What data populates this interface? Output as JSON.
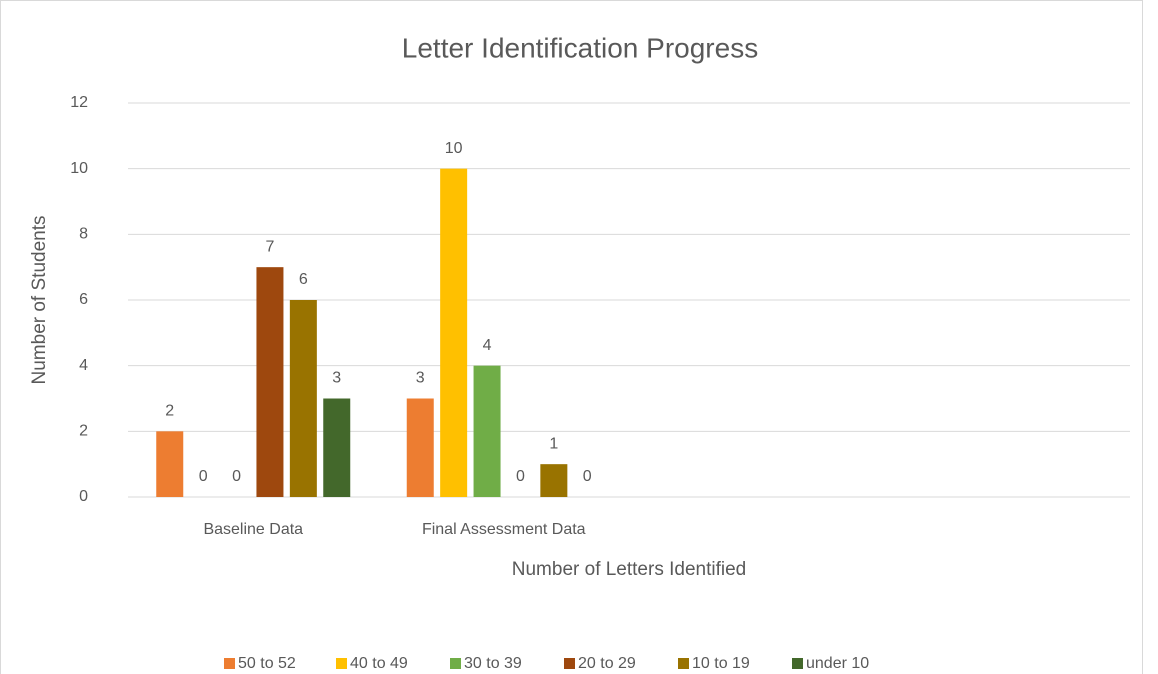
{
  "chart_data": {
    "type": "bar",
    "title": "Letter Identification Progress",
    "x_label": "Number of Letters Identified",
    "y_label": "Number of Students",
    "categories": [
      "Baseline Data",
      "Final Assessment Data",
      null,
      null
    ],
    "series": [
      {
        "name": "50 to 52",
        "color": "#ed7d31",
        "values": [
          2,
          3,
          null,
          null
        ]
      },
      {
        "name": "40 to 49",
        "color": "#ffc000",
        "values": [
          0,
          10,
          null,
          null
        ]
      },
      {
        "name": "30 to 39",
        "color": "#70ad47",
        "values": [
          0,
          4,
          null,
          null
        ]
      },
      {
        "name": "20 to 29",
        "color": "#9e480e",
        "values": [
          7,
          0,
          null,
          null
        ]
      },
      {
        "name": "10 to 19",
        "color": "#997300",
        "values": [
          6,
          1,
          null,
          null
        ]
      },
      {
        "name": "under 10",
        "color": "#43682b",
        "values": [
          3,
          0,
          null,
          null
        ]
      }
    ],
    "ylim": [
      0,
      12
    ],
    "yticks": [
      0,
      2,
      4,
      6,
      8,
      10,
      12
    ],
    "grid": true,
    "legend": "bottom"
  }
}
